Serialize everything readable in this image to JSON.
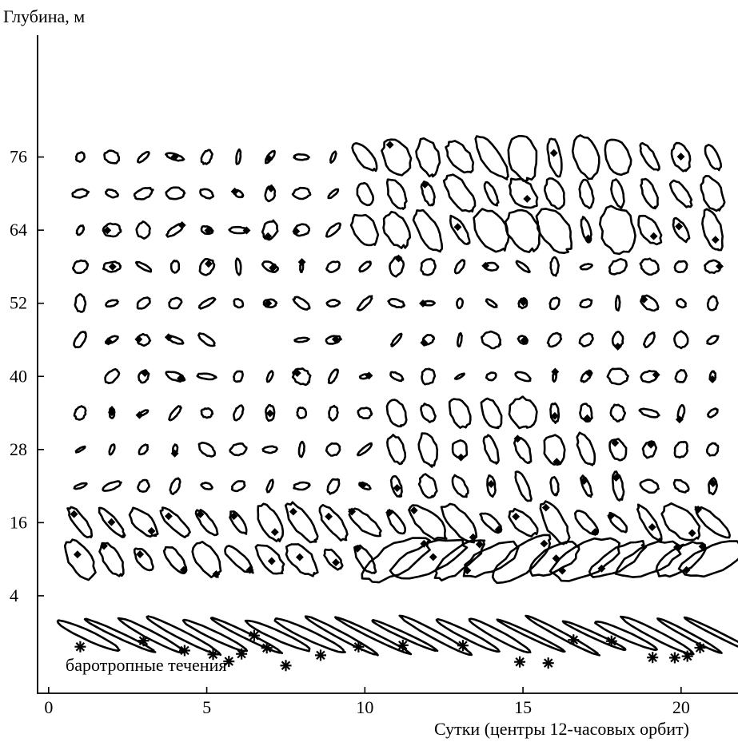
{
  "chart_data": {
    "type": "scatter",
    "description_kind": "current-ellipses",
    "ylabel": "Глубина, м",
    "xlabel": "Сутки (центры 12-часовых орбит)",
    "annotation": "баротропные течения",
    "x_ticks": [
      "0",
      "5",
      "10",
      "15",
      "20"
    ],
    "y_ticks": [
      "4",
      "16",
      "28",
      "40",
      "52",
      "64",
      "76"
    ],
    "xlim": [
      -0.35,
      21.8
    ],
    "ylim": [
      -12,
      96
    ],
    "depth_levels": [
      76,
      70,
      64,
      58,
      52,
      46,
      40,
      34,
      28,
      22,
      16,
      10
    ],
    "orbit_centers_days": [
      1,
      2,
      3,
      4,
      5,
      6,
      7,
      8,
      9,
      10,
      11,
      12,
      13,
      14,
      15,
      16,
      17,
      18,
      19,
      20,
      21
    ],
    "barotropic_row_depth": -2,
    "barotropic_star_days": [
      1,
      3,
      4.3,
      5.2,
      5.7,
      6.1,
      6.5,
      6.9,
      7.5,
      8.6,
      9.8,
      11.2,
      13.1,
      14.9,
      15.8,
      16.6,
      17.8,
      19.1,
      19.8,
      20.2,
      20.6
    ]
  }
}
